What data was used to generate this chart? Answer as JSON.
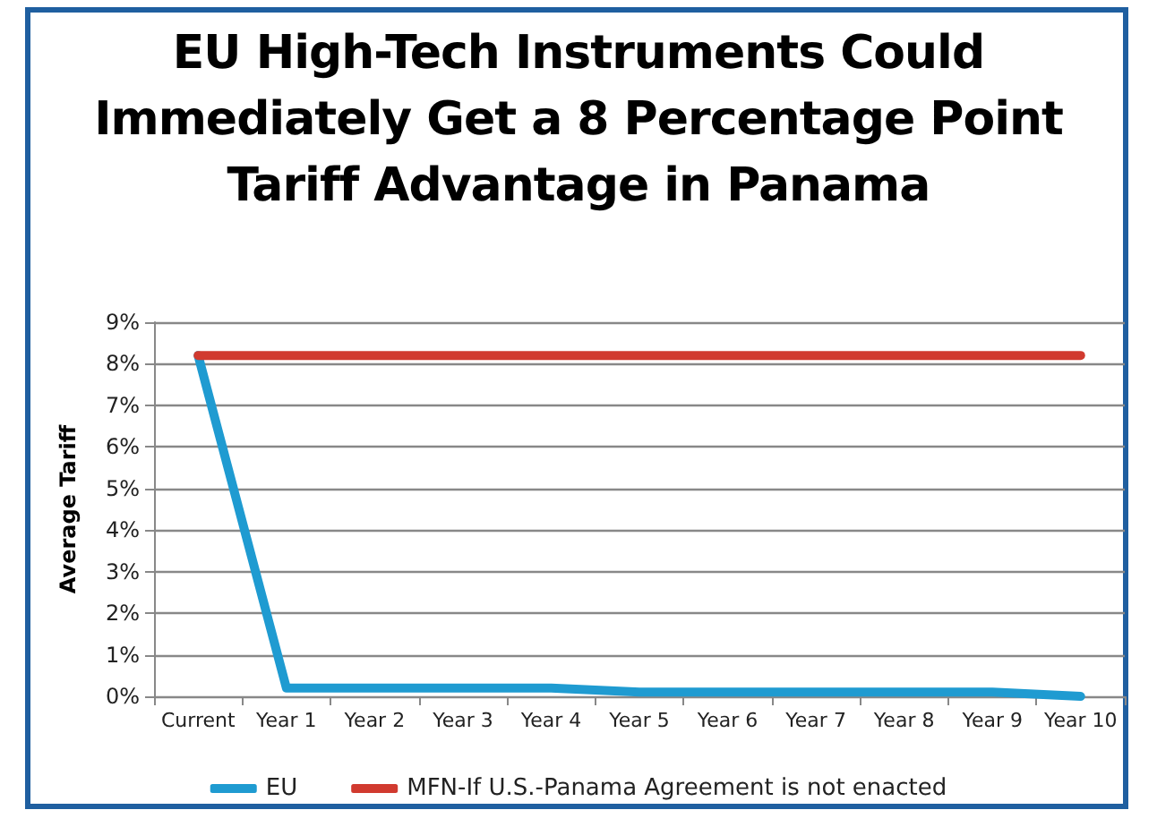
{
  "chart_data": {
    "type": "line",
    "title": "EU High-Tech Instruments Could Immediately Get a 8 Percentage Point Tariff Advantage in Panama",
    "ylabel": "Average Tariff",
    "categories": [
      "Current",
      "Year 1",
      "Year 2",
      "Year 3",
      "Year 4",
      "Year 5",
      "Year 6",
      "Year 7",
      "Year 8",
      "Year 9",
      "Year 10"
    ],
    "series": [
      {
        "name": "EU",
        "color": "#1f9bd1",
        "values": [
          8.2,
          0.2,
          0.2,
          0.2,
          0.2,
          0.1,
          0.1,
          0.1,
          0.1,
          0.1,
          0
        ]
      },
      {
        "name": "MFN-If U.S.-Panama Agreement is not enacted",
        "color": "#d13a2f",
        "values": [
          8.2,
          8.2,
          8.2,
          8.2,
          8.2,
          8.2,
          8.2,
          8.2,
          8.2,
          8.2,
          8.2
        ]
      }
    ],
    "ylim": [
      0,
      9
    ],
    "yticks": [
      {
        "value": 0,
        "label": "0%"
      },
      {
        "value": 1,
        "label": "1%"
      },
      {
        "value": 2,
        "label": "2%"
      },
      {
        "value": 3,
        "label": "3%"
      },
      {
        "value": 4,
        "label": "4%"
      },
      {
        "value": 5,
        "label": "5%"
      },
      {
        "value": 6,
        "label": "6%"
      },
      {
        "value": 7,
        "label": "7%"
      },
      {
        "value": 8,
        "label": "8%"
      },
      {
        "value": 9,
        "label": "9%"
      }
    ],
    "grid": "y",
    "legend": "bottom",
    "marker": "none",
    "line_style": "solid"
  }
}
